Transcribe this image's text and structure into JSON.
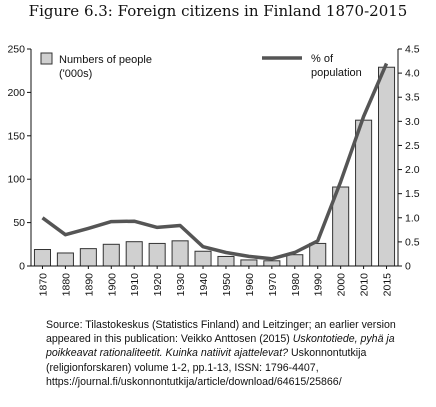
{
  "title": "Figure 6.3: Foreign citizens in Finland 1870-2015",
  "chart_data": {
    "type": "bar",
    "categories": [
      "1870",
      "1880",
      "1890",
      "1900",
      "1910",
      "1920",
      "1930",
      "1940",
      "1950",
      "1960",
      "1970",
      "1980",
      "1990",
      "2000",
      "2010",
      "2015"
    ],
    "series": [
      {
        "name": "Numbers of people ('000s)",
        "type": "bar",
        "axis": "left",
        "color": "#d0d0d0",
        "values": [
          19,
          15,
          20,
          25,
          28,
          26,
          29,
          17,
          11,
          7,
          6,
          13,
          26,
          91,
          168,
          229
        ]
      },
      {
        "name": "% of population",
        "type": "line",
        "axis": "right",
        "color": "#555555",
        "values": [
          1.0,
          0.65,
          0.78,
          0.92,
          0.93,
          0.8,
          0.84,
          0.4,
          0.28,
          0.2,
          0.15,
          0.28,
          0.52,
          1.75,
          3.1,
          4.2
        ]
      }
    ],
    "ylim": [
      0,
      250
    ],
    "yticks": [
      "0",
      "50",
      "100",
      "150",
      "200",
      "250"
    ],
    "y2lim": [
      0,
      4.5
    ],
    "y2ticks": [
      "0",
      "0.5",
      "1.0",
      "1.5",
      "2.0",
      "2.5",
      "3.0",
      "3.5",
      "4.0",
      "4.5"
    ],
    "grid": false
  },
  "legend": {
    "bars_label_line1": "Numbers of people",
    "bars_label_line2": "('000s)",
    "line_label_line1": "% of",
    "line_label_line2": "population"
  },
  "source": {
    "part1": "Source: Tilastokeskus (Statistics Finland) and Leitzinger; an earlier version appeared in this publication: Veikko Anttosen (2015) ",
    "italic": "Uskontotiede, pyhä ja poikkeavat rationaliteetit. Kuinka natiivit ajattelevat?",
    "part2": " Uskonnontutkija (religionforskaren) volume 1-2, pp.1-13, ISSN: 1796-4407, https://journal.fi/uskonnontutkija/article/download/64615/25866/"
  }
}
